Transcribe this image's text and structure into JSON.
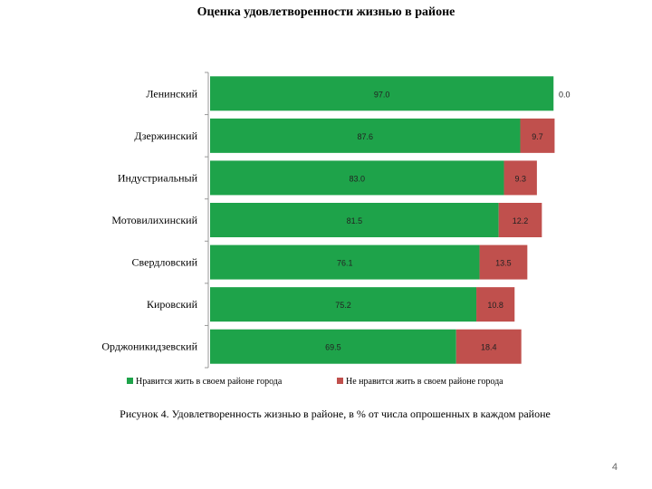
{
  "chart_data": {
    "type": "bar",
    "orientation": "horizontal",
    "stacked": true,
    "title": "Оценка удовлетворенности жизнью в районе",
    "categories": [
      "Ленинский",
      "Дзержинский",
      "Индустриальный",
      "Мотовилихинский",
      "Свердловский",
      "Кировский",
      "Орджоникидзевский"
    ],
    "series": [
      {
        "name": "Нравится жить в своем районе города",
        "color": "#1ea34a",
        "values": [
          97.0,
          87.6,
          83.0,
          81.5,
          76.1,
          75.2,
          69.5
        ],
        "labels": [
          "97.0",
          "87.6",
          "83.0",
          "81.5",
          "76.1",
          "75.2",
          "69.5"
        ]
      },
      {
        "name": "Не нравится жить в своем районе города",
        "color": "#c0504d",
        "values": [
          0.0,
          9.7,
          9.3,
          12.2,
          13.5,
          10.8,
          18.4
        ],
        "labels": [
          "0.0",
          "9.7",
          "9.3",
          "12.2",
          "13.5",
          "10.8",
          "18.4"
        ]
      }
    ],
    "xlim": [
      0,
      100
    ],
    "legend_position": "bottom",
    "grid": false
  },
  "caption": "Рисунок 4. Удовлетворенность жизнью в районе, в % от числа опрошенных в каждом районе",
  "page_number": "4"
}
